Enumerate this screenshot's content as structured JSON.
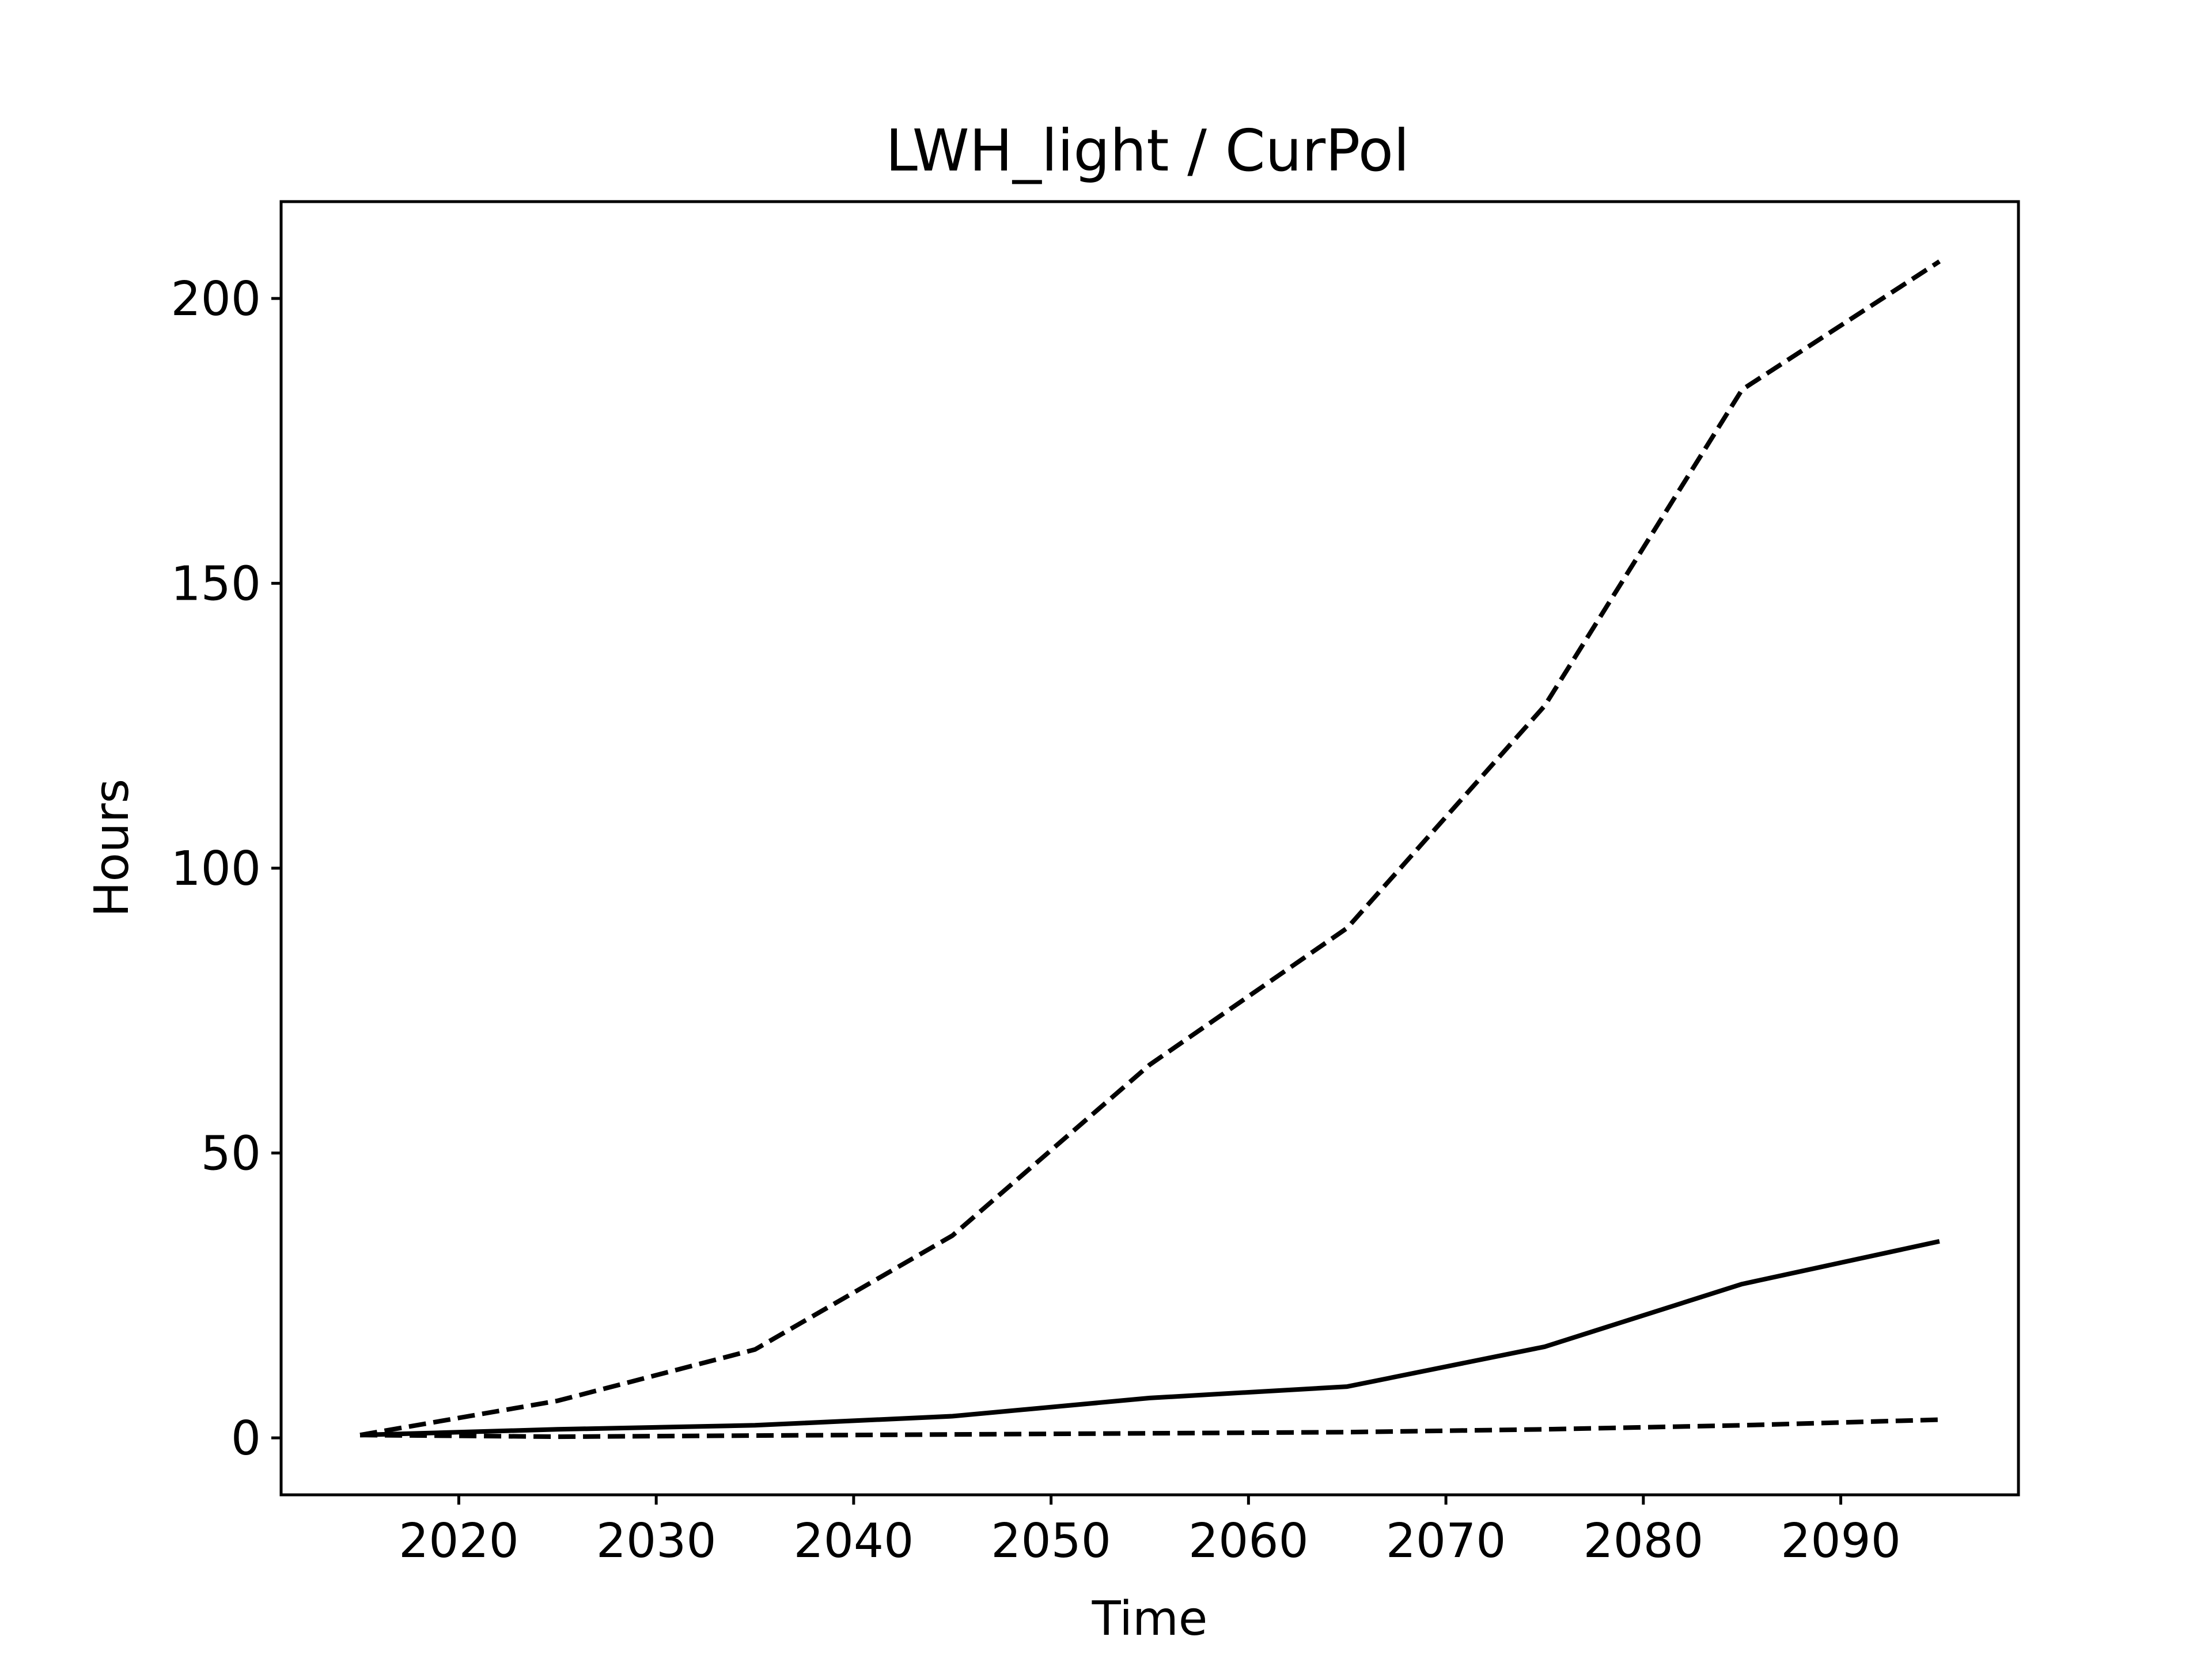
{
  "chart_data": {
    "type": "line",
    "title": "LWH_light / CurPol",
    "xlabel": "Time",
    "ylabel": "Hours",
    "xlim": [
      2011,
      2099
    ],
    "ylim": [
      -10,
      217
    ],
    "xticks": [
      2020,
      2030,
      2040,
      2050,
      2060,
      2070,
      2080,
      2090
    ],
    "yticks": [
      0,
      50,
      100,
      150,
      200
    ],
    "grid": false,
    "legend": "none",
    "x": [
      2015,
      2025,
      2035,
      2045,
      2055,
      2065,
      2075,
      2085,
      2095
    ],
    "series": [
      {
        "style": "dashed",
        "color": "#000000",
        "values": [
          0.5,
          6.5,
          15.5,
          35.5,
          65.5,
          89.5,
          128.5,
          184,
          206.5
        ]
      },
      {
        "style": "solid",
        "color": "#000000",
        "values": [
          0.5,
          1.5,
          2.2,
          3.8,
          7.0,
          9.0,
          16.0,
          27.0,
          34.5
        ]
      },
      {
        "style": "dashed",
        "color": "#000000",
        "values": [
          0.5,
          0.2,
          0.4,
          0.6,
          0.8,
          1.0,
          1.5,
          2.2,
          3.2
        ]
      }
    ]
  }
}
